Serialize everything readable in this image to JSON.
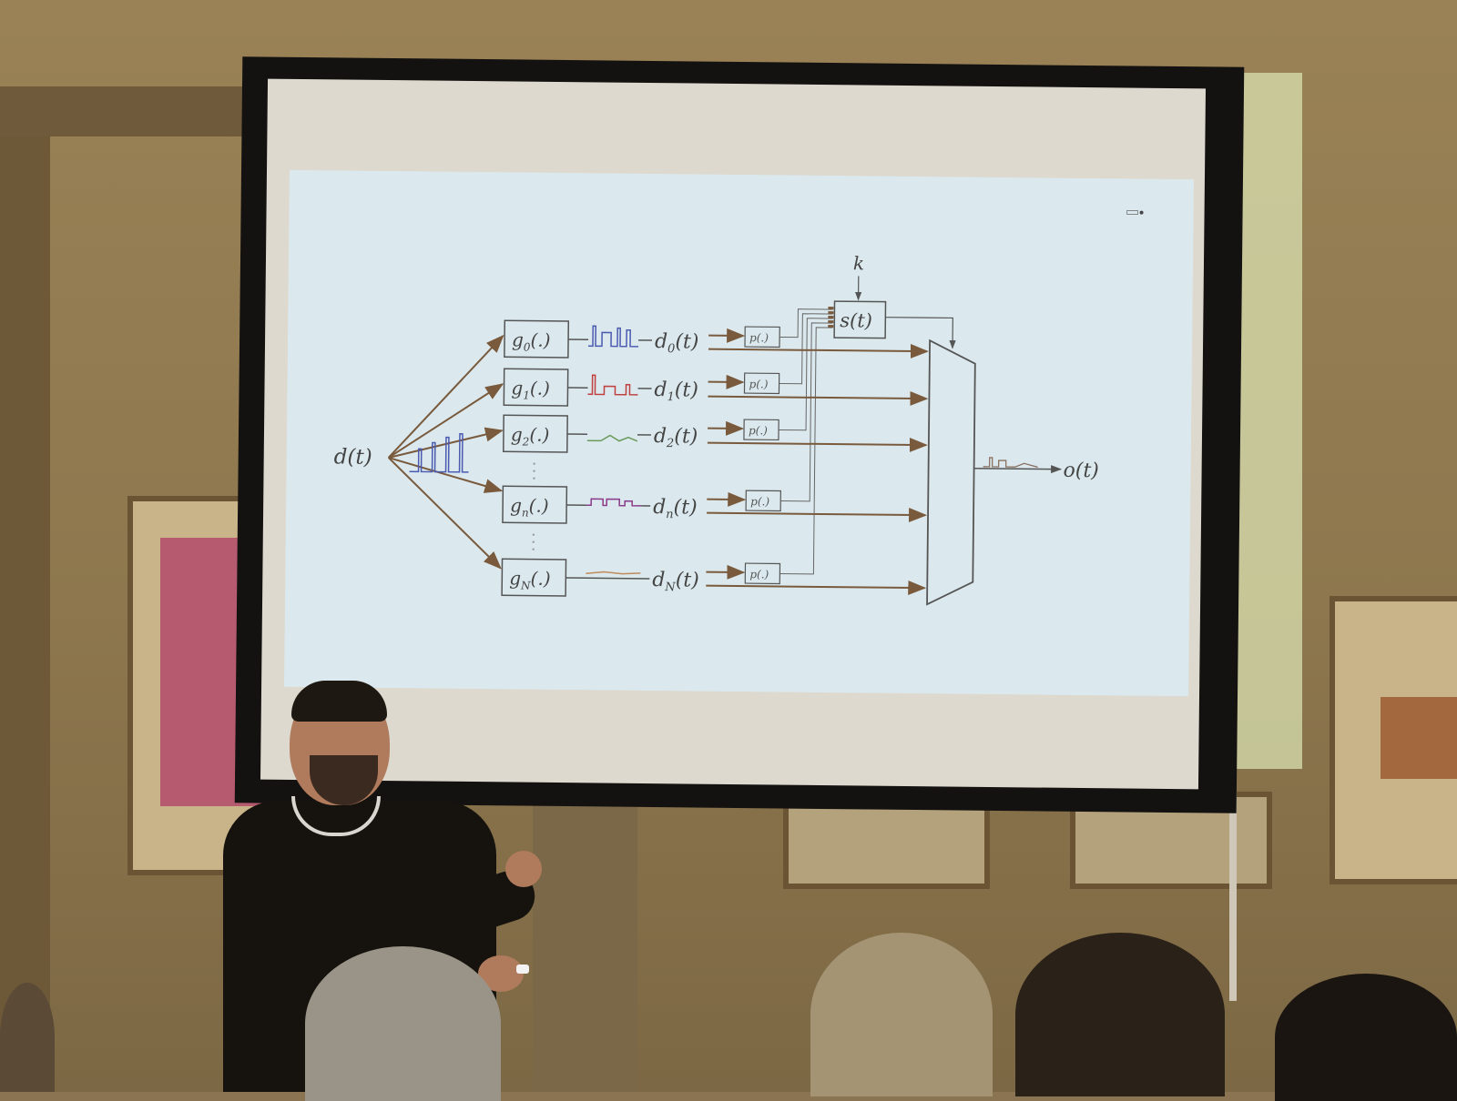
{
  "slide": {
    "input_label": "d(t)",
    "generators": [
      {
        "label": "g",
        "sub": "0",
        "suffix": "(.)",
        "output": "d",
        "out_sub": "0",
        "out_suffix": "(t)"
      },
      {
        "label": "g",
        "sub": "1",
        "suffix": "(.)",
        "output": "d",
        "out_sub": "1",
        "out_suffix": "(t)"
      },
      {
        "label": "g",
        "sub": "2",
        "suffix": "(.)",
        "output": "d",
        "out_sub": "2",
        "out_suffix": "(t)"
      },
      {
        "label": "g",
        "sub": "n",
        "suffix": "(.)",
        "output": "d",
        "out_sub": "n",
        "out_suffix": "(t)"
      },
      {
        "label": "g",
        "sub": "N",
        "suffix": "(.)",
        "output": "d",
        "out_sub": "N",
        "out_suffix": "(t)"
      }
    ],
    "p_label": "p(.)",
    "selector_label": "s(t)",
    "k_label": "k",
    "output_label": "o(t)"
  },
  "colors": {
    "slide_bg": "#dbe9ee",
    "arrow": "#7a5a3c",
    "line": "#555555",
    "signal_blue": "#4a5ab0",
    "signal_red": "#c04040",
    "signal_green": "#6a9a5a",
    "signal_purple": "#8a3a8a",
    "signal_orange": "#c08a5a"
  }
}
